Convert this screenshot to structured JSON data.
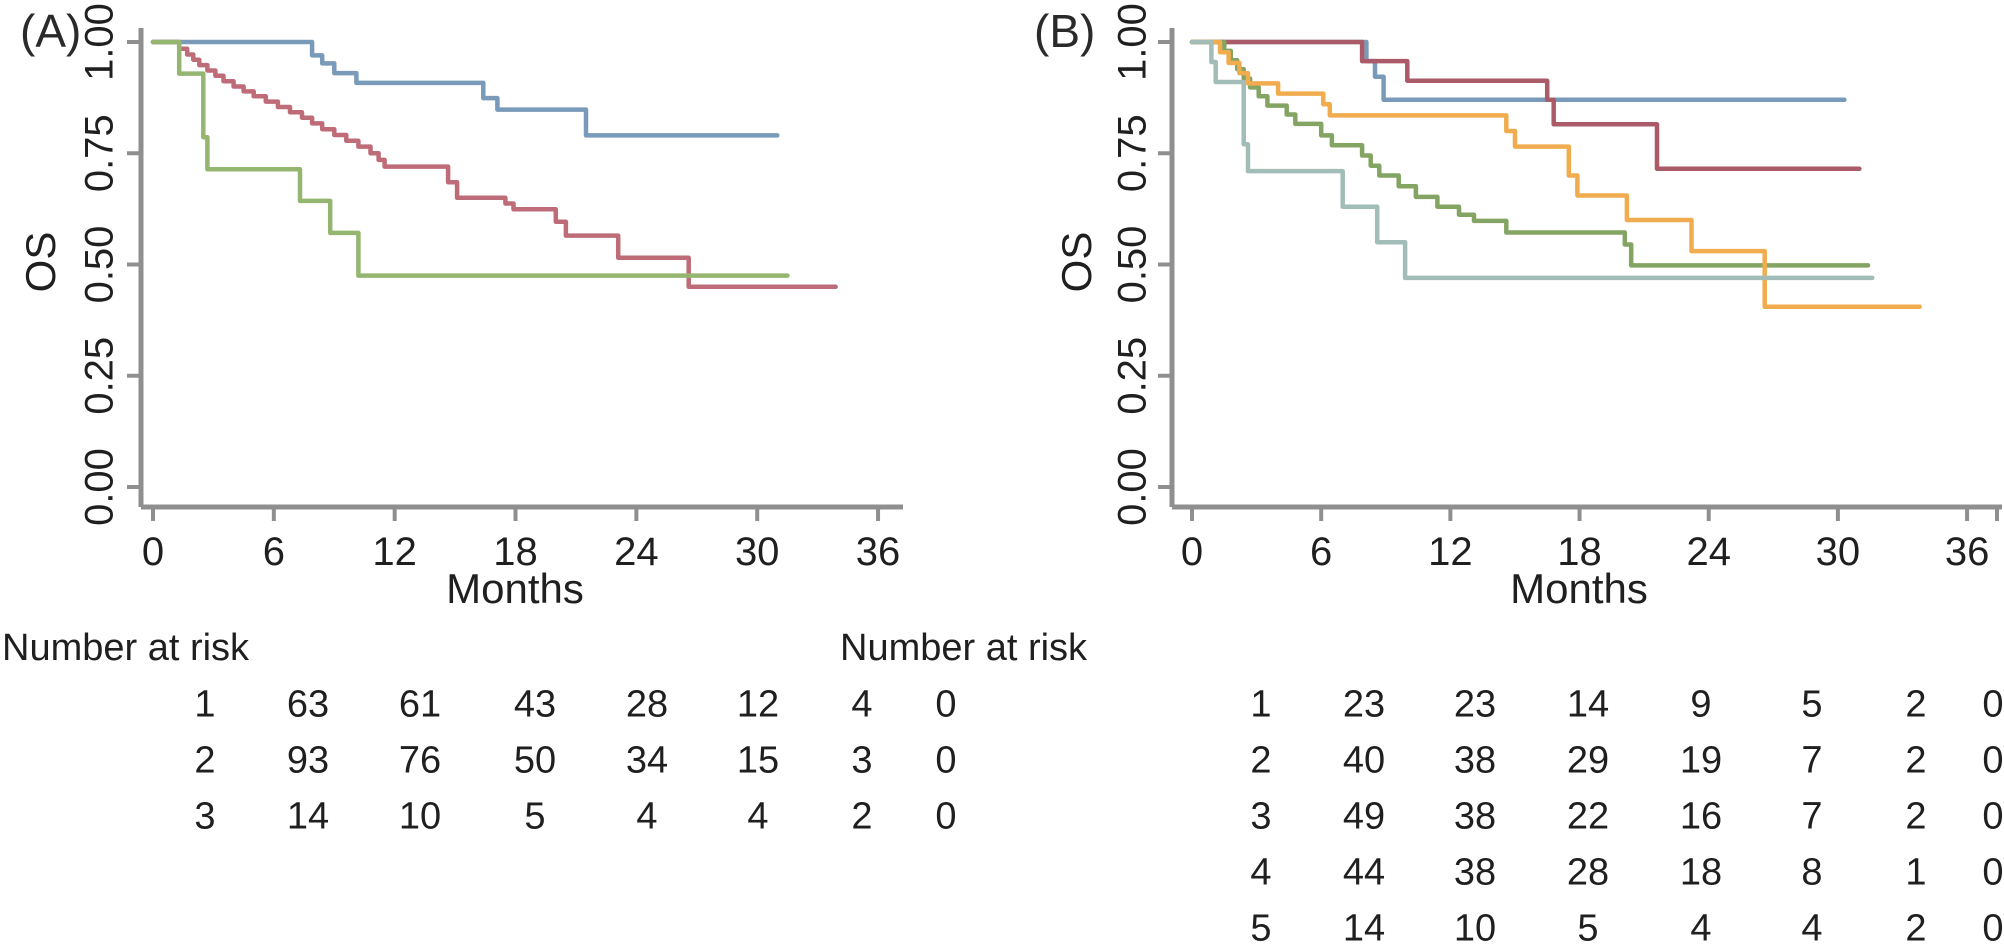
{
  "chart_data": [
    {
      "type": "line",
      "subtype": "kaplan-meier-step",
      "panel_label": "(A)",
      "xlabel": "Months",
      "ylabel": "OS",
      "xlim": [
        0,
        37
      ],
      "ylim": [
        0.0,
        1.0
      ],
      "grid": false,
      "legend": "none",
      "xticks": [
        0,
        6,
        12,
        18,
        24,
        30,
        36
      ],
      "xtick_labels": [
        "0",
        "6",
        "12",
        "18",
        "24",
        "30",
        "36"
      ],
      "yticks": [
        0.0,
        0.25,
        0.5,
        0.75,
        1.0
      ],
      "ytick_labels": [
        "0.00",
        "0.25",
        "0.50",
        "0.75",
        "1.00"
      ],
      "series": [
        {
          "group": "1",
          "color": "#7a9ab9",
          "points": [
            [
              0,
              1
            ],
            [
              7.9,
              1
            ],
            [
              7.9,
              0.97
            ],
            [
              8.4,
              0.97
            ],
            [
              8.4,
              0.952
            ],
            [
              9,
              0.952
            ],
            [
              9,
              0.93
            ],
            [
              10.1,
              0.93
            ],
            [
              10.1,
              0.908
            ],
            [
              16.4,
              0.908
            ],
            [
              16.4,
              0.874
            ],
            [
              17.1,
              0.874
            ],
            [
              17.1,
              0.848
            ],
            [
              21.5,
              0.848
            ],
            [
              21.5,
              0.79
            ],
            [
              31,
              0.79
            ]
          ]
        },
        {
          "group": "2",
          "color": "#be6c78",
          "points": [
            [
              0,
              1
            ],
            [
              1.3,
              1
            ],
            [
              1.3,
              0.985
            ],
            [
              1.7,
              0.985
            ],
            [
              1.7,
              0.972
            ],
            [
              2,
              0.972
            ],
            [
              2,
              0.96
            ],
            [
              2.3,
              0.96
            ],
            [
              2.3,
              0.948
            ],
            [
              2.7,
              0.948
            ],
            [
              2.7,
              0.936
            ],
            [
              3.1,
              0.936
            ],
            [
              3.1,
              0.924
            ],
            [
              3.5,
              0.924
            ],
            [
              3.5,
              0.912
            ],
            [
              4,
              0.912
            ],
            [
              4,
              0.9
            ],
            [
              4.5,
              0.9
            ],
            [
              4.5,
              0.889
            ],
            [
              5,
              0.889
            ],
            [
              5,
              0.878
            ],
            [
              5.6,
              0.878
            ],
            [
              5.6,
              0.866
            ],
            [
              6.2,
              0.866
            ],
            [
              6.2,
              0.854
            ],
            [
              6.8,
              0.854
            ],
            [
              6.8,
              0.842
            ],
            [
              7.4,
              0.842
            ],
            [
              7.4,
              0.83
            ],
            [
              7.9,
              0.83
            ],
            [
              7.9,
              0.817
            ],
            [
              8.4,
              0.817
            ],
            [
              8.4,
              0.804
            ],
            [
              9,
              0.804
            ],
            [
              9,
              0.791
            ],
            [
              9.6,
              0.791
            ],
            [
              9.6,
              0.778
            ],
            [
              10.2,
              0.778
            ],
            [
              10.2,
              0.765
            ],
            [
              10.8,
              0.765
            ],
            [
              10.8,
              0.75
            ],
            [
              11.2,
              0.75
            ],
            [
              11.2,
              0.735
            ],
            [
              11.5,
              0.735
            ],
            [
              11.5,
              0.72
            ],
            [
              14.65,
              0.72
            ],
            [
              14.65,
              0.685
            ],
            [
              15.1,
              0.685
            ],
            [
              15.1,
              0.65
            ],
            [
              17.5,
              0.65
            ],
            [
              17.5,
              0.637
            ],
            [
              17.9,
              0.637
            ],
            [
              17.9,
              0.624
            ],
            [
              20,
              0.624
            ],
            [
              20,
              0.596
            ],
            [
              20.5,
              0.596
            ],
            [
              20.5,
              0.565
            ],
            [
              23.1,
              0.565
            ],
            [
              23.1,
              0.515
            ],
            [
              26.6,
              0.515
            ],
            [
              26.6,
              0.45
            ],
            [
              33.9,
              0.45
            ]
          ]
        },
        {
          "group": "3",
          "color": "#94b670",
          "points": [
            [
              0,
              1
            ],
            [
              1.3,
              1
            ],
            [
              1.3,
              0.929
            ],
            [
              2.5,
              0.929
            ],
            [
              2.5,
              0.786
            ],
            [
              2.7,
              0.786
            ],
            [
              2.7,
              0.714
            ],
            [
              7.3,
              0.714
            ],
            [
              7.3,
              0.643
            ],
            [
              8.8,
              0.643
            ],
            [
              8.8,
              0.571
            ],
            [
              10.2,
              0.571
            ],
            [
              10.2,
              0.475
            ],
            [
              31.5,
              0.475
            ]
          ]
        }
      ],
      "risk_table": {
        "title": "Number at risk",
        "time_points": [
          0,
          6,
          12,
          18,
          24,
          30,
          36
        ],
        "rows": [
          {
            "group": "1",
            "counts": [
              "63",
              "61",
              "43",
              "28",
              "12",
              "4",
              "0"
            ]
          },
          {
            "group": "2",
            "counts": [
              "93",
              "76",
              "50",
              "34",
              "15",
              "3",
              "0"
            ]
          },
          {
            "group": "3",
            "counts": [
              "14",
              "10",
              "5",
              "4",
              "4",
              "2",
              "0"
            ]
          }
        ]
      }
    },
    {
      "type": "line",
      "subtype": "kaplan-meier-step",
      "panel_label": "(B)",
      "xlabel": "Months",
      "ylabel": "OS",
      "xlim": [
        0,
        37.5
      ],
      "ylim": [
        0.0,
        1.0
      ],
      "grid": false,
      "legend": "none",
      "xticks": [
        0,
        6,
        12,
        18,
        24,
        30,
        36
      ],
      "xtick_labels": [
        "0",
        "6",
        "12",
        "18",
        "24",
        "30",
        "36"
      ],
      "yticks": [
        0.0,
        0.25,
        0.5,
        0.75,
        1.0
      ],
      "ytick_labels": [
        "0.00",
        "0.25",
        "0.50",
        "0.75",
        "1.00"
      ],
      "series": [
        {
          "group": "1",
          "color": "#7a9ab9",
          "points": [
            [
              0,
              1
            ],
            [
              8.1,
              1
            ],
            [
              8.1,
              0.957
            ],
            [
              8.5,
              0.957
            ],
            [
              8.5,
              0.922
            ],
            [
              8.9,
              0.922
            ],
            [
              8.9,
              0.87
            ],
            [
              30.3,
              0.87
            ]
          ]
        },
        {
          "group": "2",
          "color": "#ab5b68",
          "points": [
            [
              0,
              1
            ],
            [
              7.9,
              1
            ],
            [
              7.9,
              0.957
            ],
            [
              10,
              0.957
            ],
            [
              10,
              0.913
            ],
            [
              16.5,
              0.913
            ],
            [
              16.5,
              0.87
            ],
            [
              16.8,
              0.87
            ],
            [
              16.8,
              0.815
            ],
            [
              21.6,
              0.815
            ],
            [
              21.6,
              0.715
            ],
            [
              31,
              0.715
            ]
          ]
        },
        {
          "group": "3",
          "color": "#84a463",
          "points": [
            [
              0,
              1
            ],
            [
              1.5,
              1
            ],
            [
              1.5,
              0.98
            ],
            [
              1.8,
              0.98
            ],
            [
              1.8,
              0.959
            ],
            [
              2.1,
              0.959
            ],
            [
              2.1,
              0.939
            ],
            [
              2.4,
              0.939
            ],
            [
              2.4,
              0.918
            ],
            [
              2.7,
              0.918
            ],
            [
              2.7,
              0.898
            ],
            [
              3.1,
              0.898
            ],
            [
              3.1,
              0.878
            ],
            [
              3.5,
              0.878
            ],
            [
              3.5,
              0.857
            ],
            [
              4.4,
              0.857
            ],
            [
              4.4,
              0.837
            ],
            [
              4.8,
              0.837
            ],
            [
              4.8,
              0.816
            ],
            [
              6,
              0.816
            ],
            [
              6,
              0.79
            ],
            [
              6.5,
              0.79
            ],
            [
              6.5,
              0.768
            ],
            [
              7.9,
              0.768
            ],
            [
              7.9,
              0.745
            ],
            [
              8.3,
              0.745
            ],
            [
              8.3,
              0.722
            ],
            [
              8.7,
              0.722
            ],
            [
              8.7,
              0.7
            ],
            [
              9.6,
              0.7
            ],
            [
              9.6,
              0.676
            ],
            [
              10.4,
              0.676
            ],
            [
              10.4,
              0.652
            ],
            [
              11.4,
              0.652
            ],
            [
              11.4,
              0.63
            ],
            [
              12.4,
              0.63
            ],
            [
              12.4,
              0.612
            ],
            [
              13.1,
              0.612
            ],
            [
              13.1,
              0.598
            ],
            [
              14.6,
              0.598
            ],
            [
              14.6,
              0.572
            ],
            [
              20.1,
              0.572
            ],
            [
              20.1,
              0.545
            ],
            [
              20.4,
              0.545
            ],
            [
              20.4,
              0.498
            ],
            [
              31.4,
              0.498
            ]
          ]
        },
        {
          "group": "4",
          "color": "#f0ac4e",
          "points": [
            [
              0,
              1
            ],
            [
              1.3,
              1
            ],
            [
              1.3,
              0.977
            ],
            [
              1.7,
              0.977
            ],
            [
              1.7,
              0.953
            ],
            [
              2.2,
              0.953
            ],
            [
              2.2,
              0.93
            ],
            [
              2.6,
              0.93
            ],
            [
              2.6,
              0.907
            ],
            [
              4,
              0.907
            ],
            [
              4,
              0.884
            ],
            [
              6.1,
              0.884
            ],
            [
              6.1,
              0.86
            ],
            [
              6.4,
              0.86
            ],
            [
              6.4,
              0.835
            ],
            [
              14.6,
              0.835
            ],
            [
              14.6,
              0.8
            ],
            [
              15,
              0.8
            ],
            [
              15,
              0.765
            ],
            [
              17.5,
              0.765
            ],
            [
              17.5,
              0.7
            ],
            [
              17.9,
              0.7
            ],
            [
              17.9,
              0.655
            ],
            [
              20.2,
              0.655
            ],
            [
              20.2,
              0.6
            ],
            [
              23.2,
              0.6
            ],
            [
              23.2,
              0.53
            ],
            [
              26.6,
              0.53
            ],
            [
              26.6,
              0.405
            ],
            [
              33.8,
              0.405
            ]
          ]
        },
        {
          "group": "5",
          "color": "#a2bcb7",
          "points": [
            [
              0,
              1
            ],
            [
              0.9,
              1
            ],
            [
              0.9,
              0.955
            ],
            [
              1.1,
              0.955
            ],
            [
              1.1,
              0.91
            ],
            [
              2.4,
              0.91
            ],
            [
              2.4,
              0.77
            ],
            [
              2.6,
              0.77
            ],
            [
              2.6,
              0.71
            ],
            [
              7,
              0.71
            ],
            [
              7,
              0.63
            ],
            [
              8.6,
              0.63
            ],
            [
              8.6,
              0.55
            ],
            [
              9.9,
              0.55
            ],
            [
              9.9,
              0.47
            ],
            [
              31.6,
              0.47
            ]
          ]
        }
      ],
      "risk_table": {
        "title": "Number at risk",
        "time_points": [
          0,
          6,
          12,
          18,
          24,
          30,
          36
        ],
        "rows": [
          {
            "group": "1",
            "counts": [
              "23",
              "23",
              "14",
              "9",
              "5",
              "2",
              "0"
            ]
          },
          {
            "group": "2",
            "counts": [
              "40",
              "38",
              "29",
              "19",
              "7",
              "2",
              "0"
            ]
          },
          {
            "group": "3",
            "counts": [
              "49",
              "38",
              "22",
              "16",
              "7",
              "2",
              "0"
            ]
          },
          {
            "group": "4",
            "counts": [
              "44",
              "38",
              "28",
              "18",
              "8",
              "1",
              "0"
            ]
          },
          {
            "group": "5",
            "counts": [
              "14",
              "10",
              "5",
              "4",
              "4",
              "2",
              "0"
            ]
          }
        ]
      }
    }
  ],
  "style": {
    "axis_color": "#8f8f8f",
    "text_color": "#1f1f1f",
    "background": "#ffffff"
  }
}
